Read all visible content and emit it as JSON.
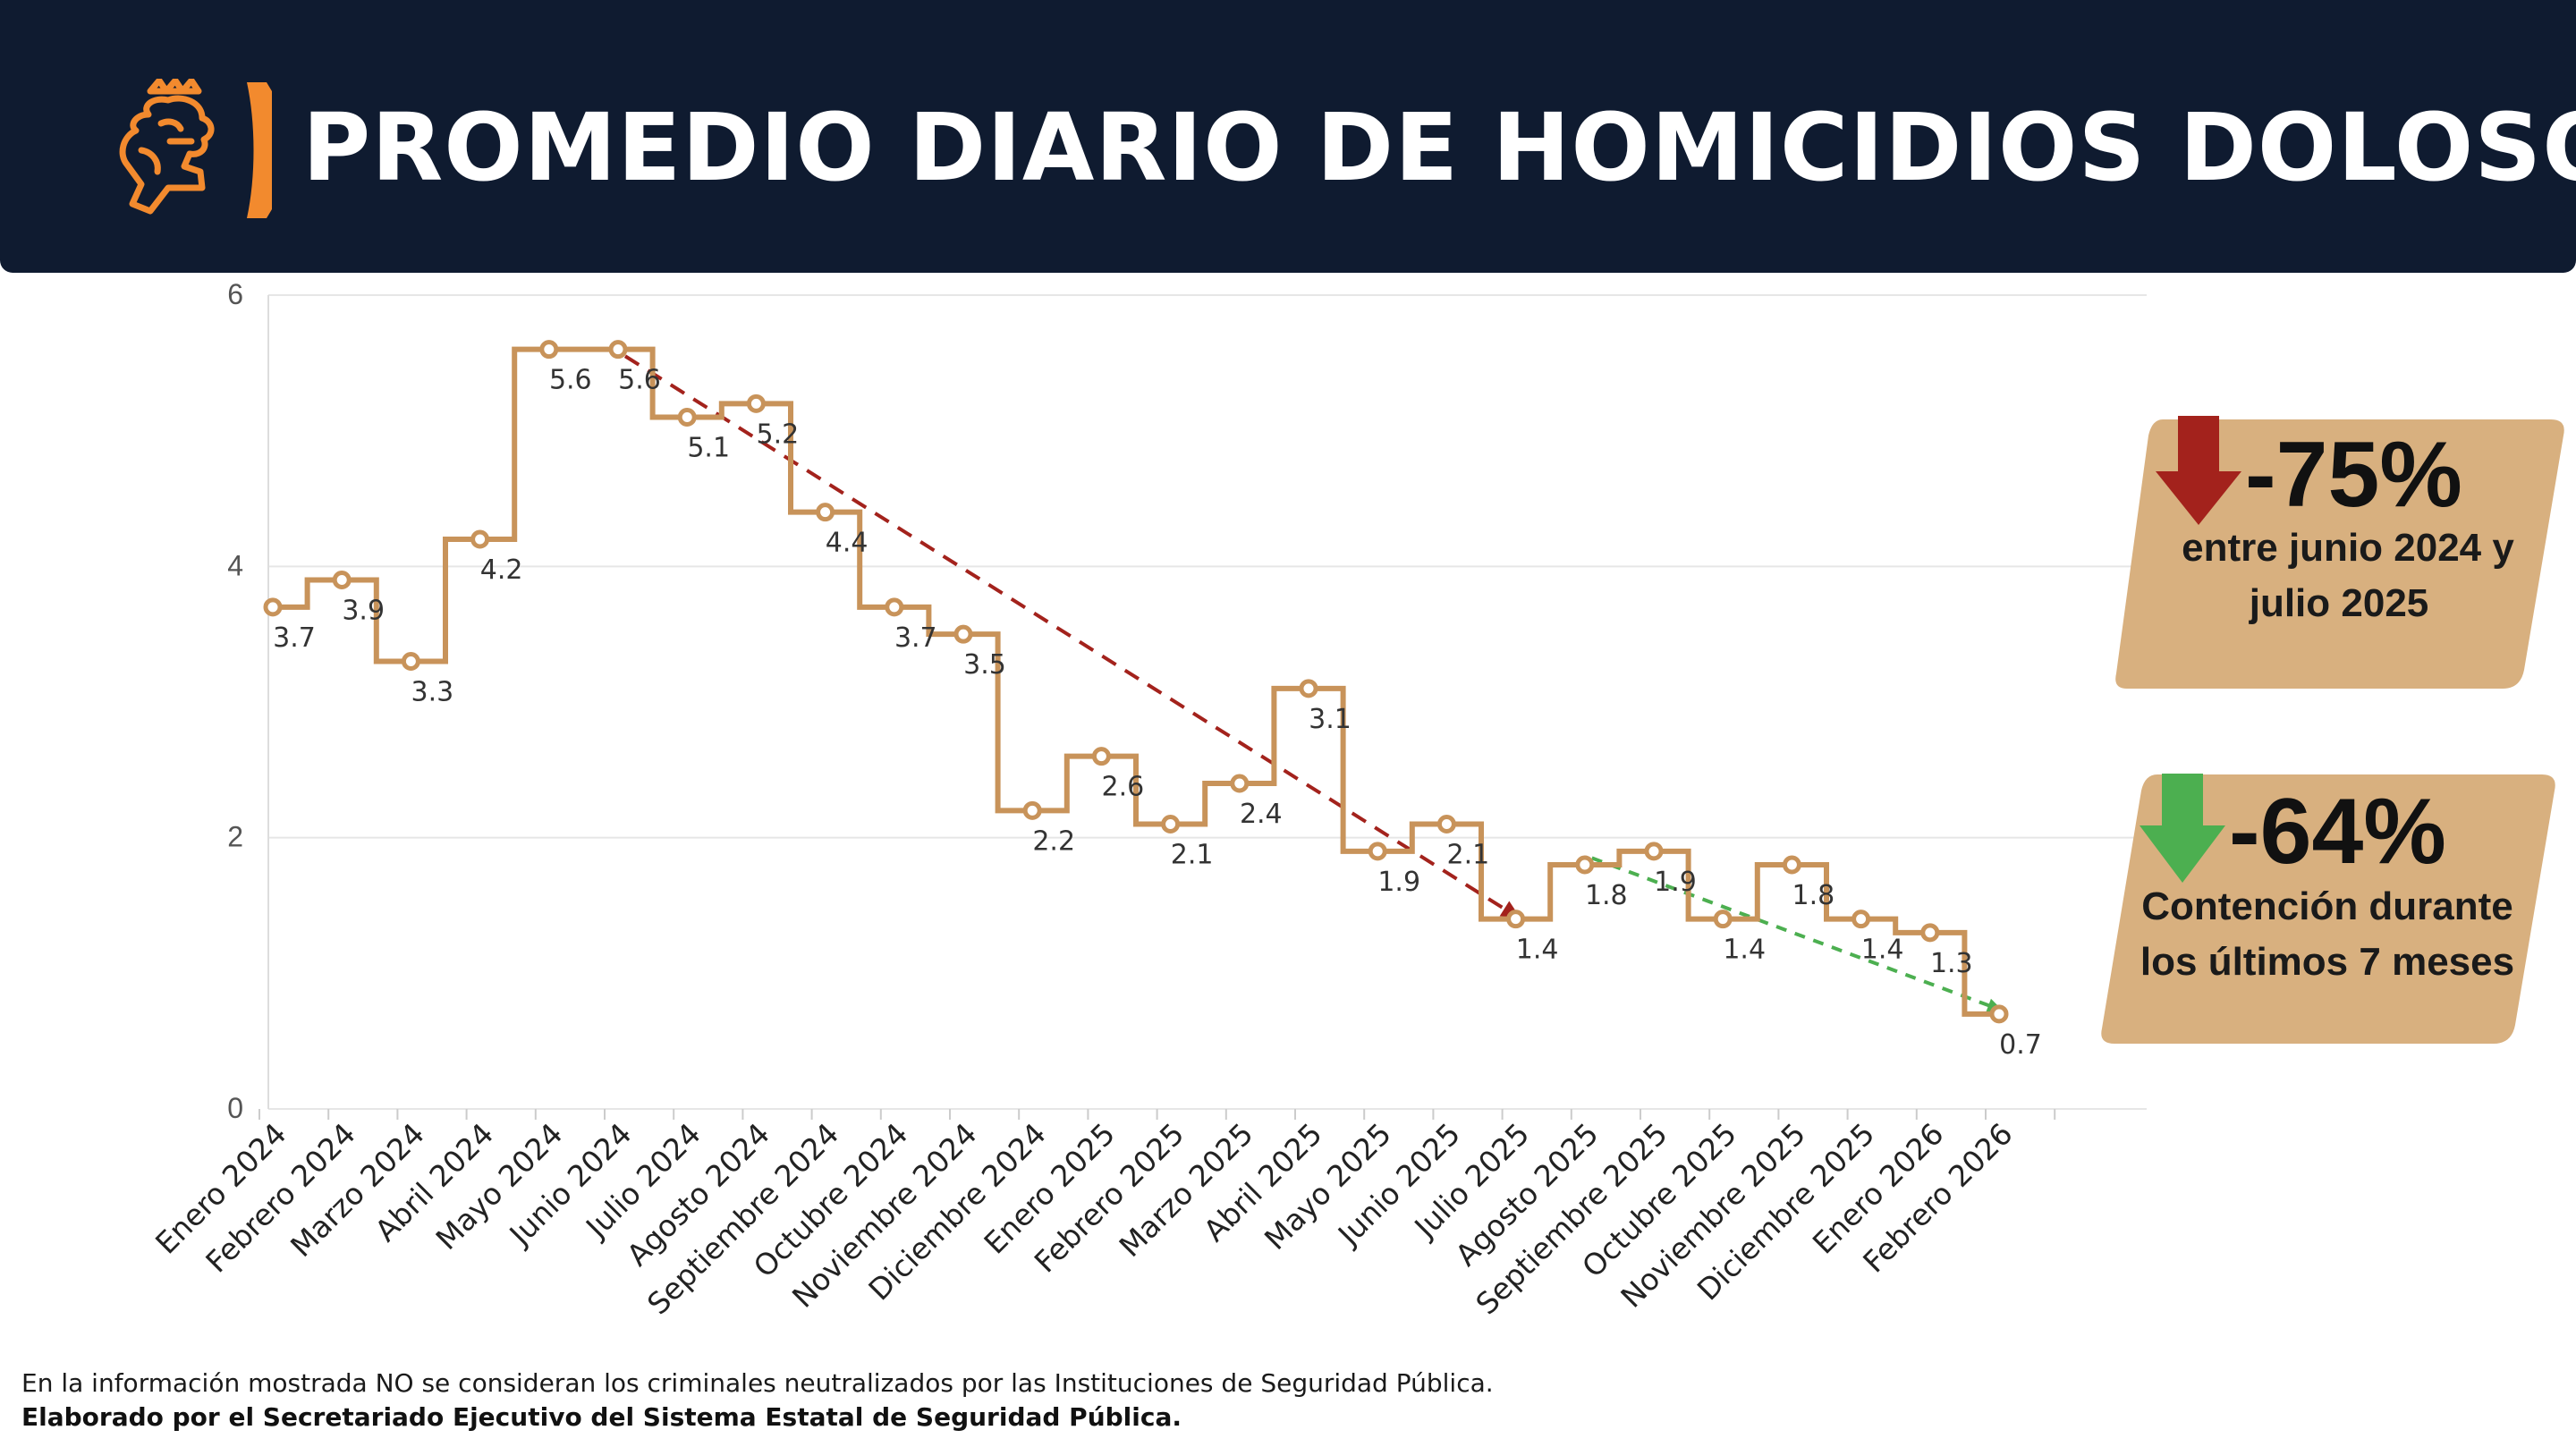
{
  "header": {
    "title": "PROMEDIO DIARIO DE HOMICIDIOS DOLOSOS"
  },
  "colors": {
    "header_bg": "#0f1b30",
    "accent_orange": "#f28a2e",
    "line": "#c8935a",
    "trend_red": "#a3221c",
    "trend_green": "#4caf50",
    "badge_bg": "#d8b07f"
  },
  "chart_data": {
    "type": "line",
    "step": true,
    "categories": [
      "Enero 2024",
      "Febrero 2024",
      "Marzo 2024",
      "Abril 2024",
      "Mayo 2024",
      "Junio 2024",
      "Julio 2024",
      "Agosto 2024",
      "Septiembre 2024",
      "Octubre 2024",
      "Noviembre 2024",
      "Diciembre 2024",
      "Enero 2025",
      "Febrero 2025",
      "Marzo 2025",
      "Abril 2025",
      "Mayo 2025",
      "Junio 2025",
      "Julio 2025",
      "Agosto 2025",
      "Septiembre 2025",
      "Octubre 2025",
      "Noviembre 2025",
      "Diciembre 2025",
      "Enero 2026",
      "Febrero 2026"
    ],
    "series": [
      {
        "name": "Promedio diario de homicidios dolosos",
        "values": [
          3.7,
          3.9,
          3.3,
          4.2,
          5.6,
          5.6,
          5.1,
          5.2,
          4.4,
          3.7,
          3.5,
          2.2,
          2.6,
          2.1,
          2.4,
          3.1,
          1.9,
          2.1,
          1.4,
          1.8,
          1.9,
          1.4,
          1.8,
          1.4,
          1.3,
          0.7
        ]
      }
    ],
    "data_labels": [
      "3.7",
      "3.9",
      "3.3",
      "4.2",
      "5.6",
      "5.6",
      "5.1",
      "5.2",
      "4.4",
      "3.7",
      "3.5",
      "2.2",
      "2.6",
      "2.1",
      "2.4",
      "3.1",
      "1.9",
      "2.1",
      "1.4",
      "1.8",
      "1.9",
      "1.4",
      "1.8",
      "1.4",
      "1.3",
      "0.7"
    ],
    "y_ticks": [
      "0",
      "2",
      "4",
      "6"
    ],
    "ylim": [
      0,
      6
    ],
    "title": "PROMEDIO DIARIO DE HOMICIDIOS DOLOSOS",
    "xlabel": "",
    "ylabel": "",
    "trendlines": [
      {
        "name": "trend-red",
        "from_index": 5,
        "to_index": 18,
        "from_value": 5.55,
        "to_value": 1.4,
        "style": "dashed"
      },
      {
        "name": "trend-green",
        "from_index": 19,
        "to_index": 25,
        "from_value": 1.85,
        "to_value": 0.7,
        "style": "dotted"
      }
    ]
  },
  "badges": [
    {
      "percent": "-75%",
      "caption_line1": "entre junio 2024 y",
      "caption_line2": "julio 2025",
      "arrow": "down-red"
    },
    {
      "percent": "-64%",
      "caption_line1": "Contención durante",
      "caption_line2": "los últimos 7 meses",
      "arrow": "down-green"
    }
  ],
  "footer": {
    "note": "En la información mostrada NO se consideran los criminales neutralizados por las Instituciones de Seguridad Pública.",
    "credit": "Elaborado por el Secretariado Ejecutivo del Sistema Estatal de Seguridad Pública."
  }
}
